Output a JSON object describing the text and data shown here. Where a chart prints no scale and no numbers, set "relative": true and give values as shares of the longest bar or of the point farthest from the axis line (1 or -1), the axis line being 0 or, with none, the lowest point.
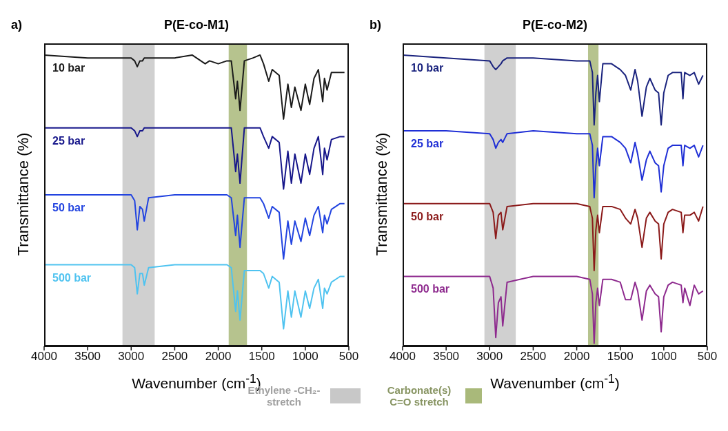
{
  "chart_data": [
    {
      "type": "line",
      "title": "P(E-co-M1)",
      "annotations": [
        "a)"
      ],
      "xlabel": "Wavenumber (cm$^{-1}$)",
      "ylabel": "Transmittance (%)",
      "relative": true,
      "xlim": [
        4000,
        500
      ],
      "xticks": [
        4000,
        3500,
        3000,
        2500,
        2000,
        1500,
        1000,
        500
      ],
      "legend": "bottom",
      "marker": "none",
      "line_style": "solid",
      "x": [
        4000,
        3500,
        3000,
        2960,
        2930,
        2900,
        2870,
        2850,
        2800,
        2500,
        2300,
        2150,
        2100,
        2000,
        1900,
        1850,
        1800,
        1780,
        1750,
        1700,
        1600,
        1520,
        1480,
        1420,
        1380,
        1300,
        1250,
        1200,
        1160,
        1120,
        1050,
        1000,
        950,
        900,
        850,
        800,
        780,
        750,
        700,
        600,
        550
      ],
      "series": [
        {
          "name": "10 bar",
          "color": "#1a1a1a",
          "values": [
            1.0,
            0.99,
            0.99,
            0.98,
            0.96,
            0.98,
            0.98,
            0.99,
            0.99,
            0.99,
            1.0,
            0.97,
            0.98,
            0.97,
            0.98,
            0.98,
            0.85,
            0.91,
            0.81,
            0.98,
            0.99,
            1.0,
            0.97,
            0.91,
            0.95,
            0.93,
            0.78,
            0.9,
            0.82,
            0.89,
            0.81,
            0.9,
            0.83,
            0.92,
            0.95,
            0.84,
            0.92,
            0.88,
            0.94,
            0.94,
            0.94
          ]
        },
        {
          "name": "25 bar",
          "color": "#16168a",
          "values": [
            0.75,
            0.75,
            0.75,
            0.74,
            0.72,
            0.74,
            0.74,
            0.75,
            0.75,
            0.75,
            0.75,
            0.75,
            0.75,
            0.75,
            0.75,
            0.75,
            0.6,
            0.66,
            0.56,
            0.75,
            0.75,
            0.75,
            0.72,
            0.68,
            0.72,
            0.7,
            0.54,
            0.67,
            0.56,
            0.66,
            0.56,
            0.66,
            0.59,
            0.68,
            0.72,
            0.59,
            0.68,
            0.64,
            0.71,
            0.72,
            0.72
          ]
        },
        {
          "name": "50 bar",
          "color": "#2244e0",
          "values": [
            0.52,
            0.52,
            0.52,
            0.5,
            0.4,
            0.48,
            0.47,
            0.43,
            0.51,
            0.52,
            0.52,
            0.52,
            0.52,
            0.52,
            0.52,
            0.51,
            0.38,
            0.45,
            0.34,
            0.51,
            0.51,
            0.51,
            0.49,
            0.44,
            0.48,
            0.46,
            0.3,
            0.43,
            0.35,
            0.43,
            0.36,
            0.44,
            0.38,
            0.45,
            0.48,
            0.39,
            0.45,
            0.42,
            0.47,
            0.49,
            0.49
          ]
        },
        {
          "name": "500 bar",
          "color": "#4fc3f0",
          "values": [
            0.28,
            0.28,
            0.28,
            0.27,
            0.18,
            0.25,
            0.25,
            0.21,
            0.27,
            0.28,
            0.28,
            0.28,
            0.28,
            0.28,
            0.28,
            0.27,
            0.12,
            0.19,
            0.09,
            0.26,
            0.26,
            0.26,
            0.25,
            0.2,
            0.24,
            0.22,
            0.06,
            0.19,
            0.1,
            0.19,
            0.1,
            0.19,
            0.13,
            0.2,
            0.23,
            0.13,
            0.2,
            0.18,
            0.22,
            0.24,
            0.24
          ]
        }
      ],
      "bands": [
        {
          "axis": "x",
          "from": 3100,
          "to": 2730,
          "color": "#c8c8c8",
          "label": "Ethylene -CH₂- stretch"
        },
        {
          "axis": "x",
          "from": 1880,
          "to": 1670,
          "color": "#a9b97a",
          "label": "Carbonate(s) C=O stretch"
        }
      ]
    },
    {
      "type": "line",
      "title": "P(E-co-M2)",
      "annotations": [
        "b)"
      ],
      "xlabel": "Wavenumber (cm$^{-1}$)",
      "ylabel": "Transmittance (%)",
      "relative": true,
      "xlim": [
        4000,
        500
      ],
      "xticks": [
        4000,
        3500,
        3000,
        2500,
        2000,
        1500,
        1000,
        500
      ],
      "marker": "none",
      "line_style": "solid",
      "x": [
        4000,
        3500,
        3000,
        2960,
        2930,
        2900,
        2870,
        2850,
        2800,
        2500,
        2000,
        1850,
        1820,
        1800,
        1780,
        1760,
        1740,
        1700,
        1600,
        1500,
        1440,
        1380,
        1330,
        1300,
        1250,
        1200,
        1160,
        1100,
        1060,
        1030,
        1000,
        950,
        900,
        800,
        780,
        760,
        700,
        650,
        600,
        550
      ],
      "series": [
        {
          "name": "10 bar",
          "color": "#1a237e",
          "values": [
            1.0,
            0.99,
            0.98,
            0.96,
            0.95,
            0.96,
            0.97,
            0.98,
            0.99,
            0.99,
            0.98,
            0.98,
            0.94,
            0.76,
            0.87,
            0.93,
            0.84,
            0.97,
            0.97,
            0.95,
            0.93,
            0.88,
            0.95,
            0.91,
            0.79,
            0.89,
            0.92,
            0.88,
            0.87,
            0.76,
            0.87,
            0.93,
            0.94,
            0.94,
            0.85,
            0.94,
            0.93,
            0.94,
            0.9,
            0.93
          ]
        },
        {
          "name": "25 bar",
          "color": "#1f2fd6",
          "values": [
            0.74,
            0.74,
            0.73,
            0.71,
            0.68,
            0.7,
            0.71,
            0.7,
            0.73,
            0.74,
            0.73,
            0.73,
            0.69,
            0.51,
            0.62,
            0.68,
            0.62,
            0.72,
            0.72,
            0.7,
            0.68,
            0.63,
            0.7,
            0.66,
            0.57,
            0.64,
            0.67,
            0.63,
            0.62,
            0.53,
            0.62,
            0.68,
            0.69,
            0.69,
            0.62,
            0.69,
            0.68,
            0.69,
            0.65,
            0.69
          ]
        },
        {
          "name": "50 bar",
          "color": "#8b1a1a",
          "values": [
            0.49,
            0.49,
            0.49,
            0.46,
            0.37,
            0.45,
            0.46,
            0.4,
            0.48,
            0.49,
            0.49,
            0.48,
            0.44,
            0.26,
            0.4,
            0.45,
            0.39,
            0.48,
            0.48,
            0.47,
            0.44,
            0.42,
            0.47,
            0.44,
            0.34,
            0.44,
            0.46,
            0.43,
            0.42,
            0.3,
            0.42,
            0.46,
            0.47,
            0.46,
            0.39,
            0.45,
            0.45,
            0.46,
            0.43,
            0.48
          ]
        },
        {
          "name": "500 bar",
          "color": "#8e2a8e",
          "values": [
            0.24,
            0.24,
            0.24,
            0.2,
            0.03,
            0.15,
            0.17,
            0.07,
            0.22,
            0.24,
            0.24,
            0.23,
            0.18,
            0.01,
            0.15,
            0.2,
            0.14,
            0.23,
            0.23,
            0.22,
            0.16,
            0.16,
            0.22,
            0.19,
            0.09,
            0.19,
            0.21,
            0.18,
            0.17,
            0.05,
            0.17,
            0.21,
            0.22,
            0.21,
            0.15,
            0.2,
            0.14,
            0.21,
            0.18,
            0.19
          ]
        }
      ],
      "bands": [
        {
          "axis": "x",
          "from": 3060,
          "to": 2700,
          "color": "#c8c8c8"
        },
        {
          "axis": "x",
          "from": 1870,
          "to": 1750,
          "color": "#a9b97a"
        }
      ]
    }
  ]
}
